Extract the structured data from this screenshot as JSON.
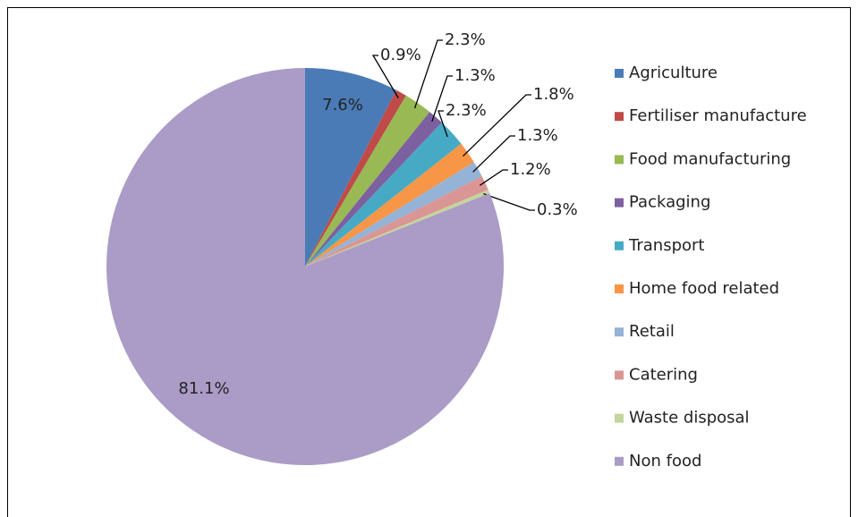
{
  "chart_data": {
    "type": "pie",
    "categories": [
      "Agriculture",
      "Fertiliser manufacture",
      "Food manufacturing",
      "Packaging",
      "Transport",
      "Home food related",
      "Retail",
      "Catering",
      "Waste disposal",
      "Non food"
    ],
    "values": [
      7.6,
      0.9,
      2.3,
      1.3,
      2.3,
      1.8,
      1.3,
      1.2,
      0.3,
      81.1
    ],
    "value_labels": [
      "7.6%",
      "0.9%",
      "2.3%",
      "1.3%",
      "2.3%",
      "1.8%",
      "1.3%",
      "1.2%",
      "0.3%",
      "81.1%"
    ],
    "colors": [
      "#4a7bb7",
      "#be4b48",
      "#98b954",
      "#7d60a0",
      "#46aac5",
      "#f79646",
      "#95b3d7",
      "#d99694",
      "#c3d69b",
      "#aa9cc6"
    ],
    "legend": "right"
  }
}
